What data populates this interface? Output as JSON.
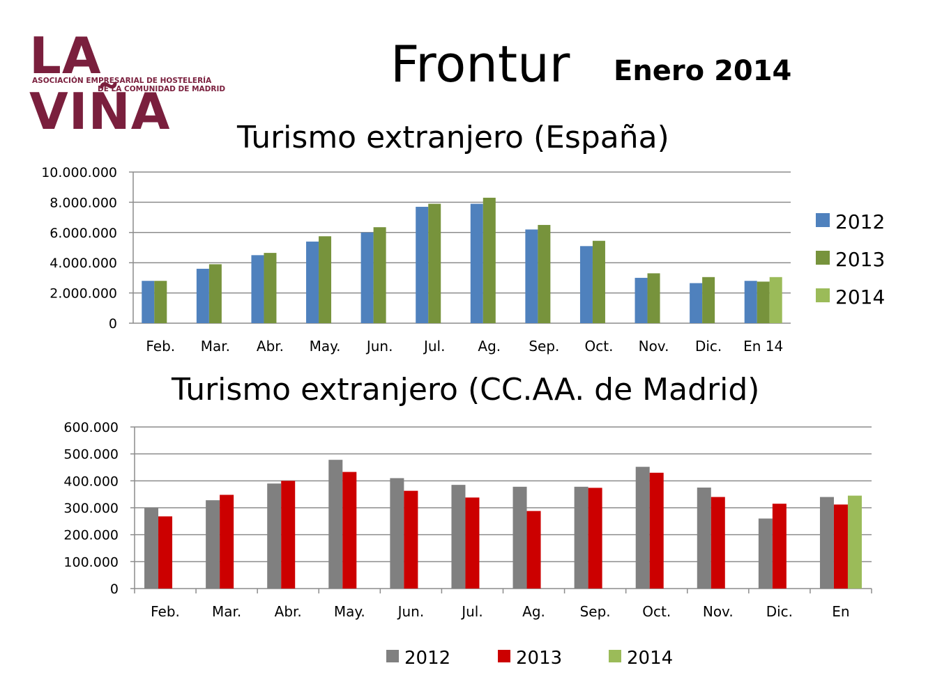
{
  "logo": {
    "text": "LA VIÑA",
    "subtitle_line1": "ASOCIACIÓN EMPRESARIAL DE HOSTELERÍA",
    "subtitle_line2": "DE LA COMUNIDAD DE MADRID",
    "color": "#7a1f3d"
  },
  "header": {
    "title": "Frontur",
    "subtitle": "Enero 2014"
  },
  "chart_data": [
    {
      "type": "bar",
      "title": "Turismo extranjero (España)",
      "xlabel": "",
      "ylabel": "",
      "categories": [
        "Feb.",
        "Mar.",
        "Abr.",
        "May.",
        "Jun.",
        "Jul.",
        "Ag.",
        "Sep.",
        "Oct.",
        "Nov.",
        "Dic.",
        "En 14"
      ],
      "ylim": [
        0,
        10000000
      ],
      "yticks": [
        "0",
        "2.000.000",
        "4.000.000",
        "6.000.000",
        "8.000.000",
        "10.000.000"
      ],
      "grid": true,
      "legend": "right",
      "series": [
        {
          "name": "2012",
          "color": "#4f81bd",
          "values": [
            2800000,
            3600000,
            4500000,
            5400000,
            6000000,
            7700000,
            7900000,
            6200000,
            5100000,
            3000000,
            2650000,
            2800000
          ]
        },
        {
          "name": "2013",
          "color": "#77933c",
          "values": [
            2800000,
            3900000,
            4650000,
            5750000,
            6350000,
            7900000,
            8300000,
            6500000,
            5450000,
            3300000,
            3050000,
            2750000
          ]
        },
        {
          "name": "2014",
          "color": "#9bbb59",
          "values": [
            null,
            null,
            null,
            null,
            null,
            null,
            null,
            null,
            null,
            null,
            null,
            3050000
          ]
        }
      ]
    },
    {
      "type": "bar",
      "title": "Turismo extranjero (CC.AA. de Madrid)",
      "xlabel": "",
      "ylabel": "",
      "categories": [
        "Feb.",
        "Mar.",
        "Abr.",
        "May.",
        "Jun.",
        "Jul.",
        "Ag.",
        "Sep.",
        "Oct.",
        "Nov.",
        "Dic.",
        "En"
      ],
      "ylim": [
        0,
        600000
      ],
      "yticks": [
        "0",
        "100.000",
        "200.000",
        "300.000",
        "400.000",
        "500.000",
        "600.000"
      ],
      "grid": true,
      "legend": "bottom",
      "series": [
        {
          "name": "2012",
          "color": "#808080",
          "values": [
            300000,
            328000,
            390000,
            478000,
            410000,
            385000,
            378000,
            378000,
            452000,
            375000,
            260000,
            340000
          ]
        },
        {
          "name": "2013",
          "color": "#cc0000",
          "values": [
            268000,
            348000,
            400000,
            433000,
            363000,
            338000,
            288000,
            374000,
            430000,
            340000,
            315000,
            312000
          ]
        },
        {
          "name": "2014",
          "color": "#9bbb59",
          "values": [
            null,
            null,
            null,
            null,
            null,
            null,
            null,
            null,
            null,
            null,
            null,
            345000
          ]
        }
      ]
    }
  ]
}
